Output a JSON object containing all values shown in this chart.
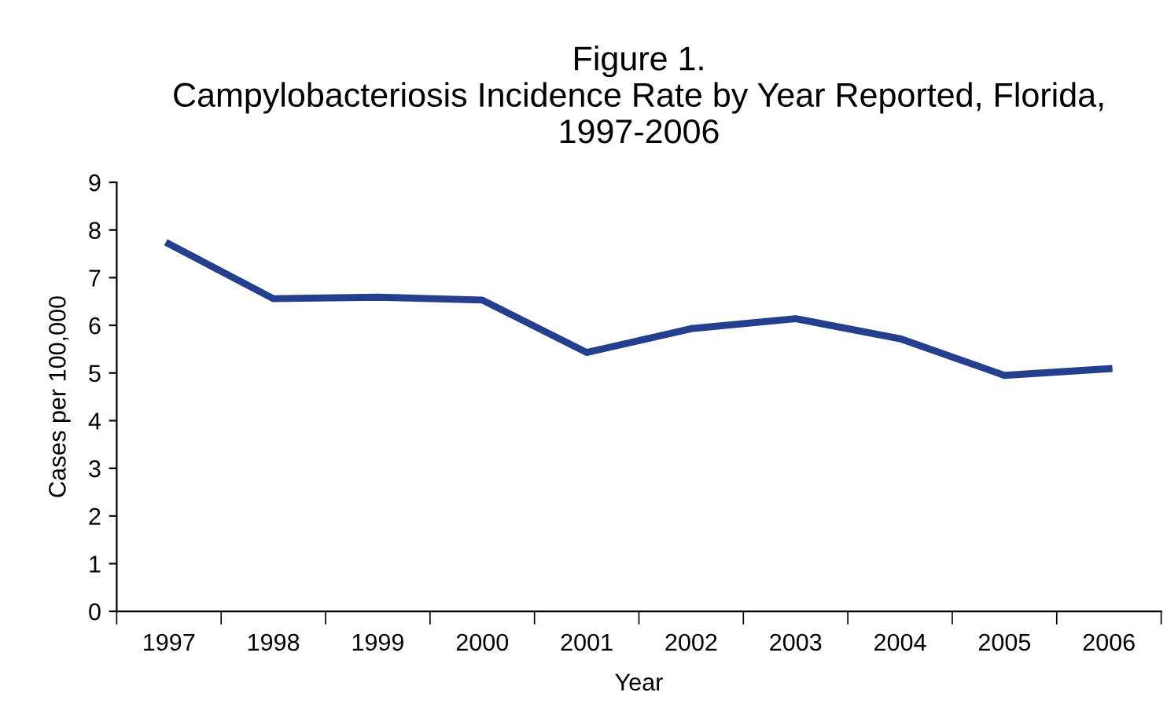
{
  "chart_data": {
    "type": "line",
    "title": "Figure 1.\nCampylobacteriosis Incidence Rate by Year Reported, Florida,\n1997-2006",
    "xlabel": "Year",
    "ylabel": "Cases per 100,000",
    "categories": [
      "1997",
      "1998",
      "1999",
      "2000",
      "2001",
      "2002",
      "2003",
      "2004",
      "2005",
      "2006"
    ],
    "series": [
      {
        "color": "#253f8f",
        "values": [
          7.71,
          6.56,
          6.59,
          6.53,
          5.43,
          5.93,
          6.14,
          5.72,
          4.95,
          5.09
        ]
      }
    ],
    "ylim": [
      0,
      9
    ],
    "yticks": [
      0,
      1,
      2,
      3,
      4,
      5,
      6,
      7,
      8,
      9
    ],
    "grid": false,
    "legend": false,
    "marker": "none",
    "line_style": "solid"
  }
}
